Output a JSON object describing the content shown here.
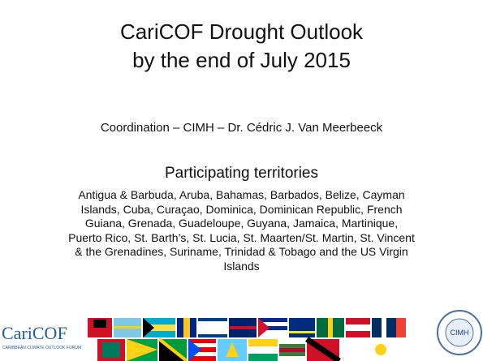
{
  "slide": {
    "title": [
      "CariCOF Drought Outlook",
      "by the end of July 2015"
    ],
    "coordination": "Coordination – CIMH – Dr. Cédric J. Van Meerbeeck",
    "territories_heading": "Participating territories",
    "territories_lines": [
      "Antigua & Barbuda, Aruba, Bahamas, Barbados, Belize, Cayman",
      "Islands, Cuba, Curaçao, Dominica, Dominican Republic, French",
      "Guiana, Grenada, Guadeloupe, Guyana, Jamaica, Martinique,",
      "Puerto Rico, St. Barth’s, St. Lucia, St. Maarten/St. Martin, St. Vincent",
      "& the Grenadines, Suriname, Trinidad & Tobago and the US Virgin",
      "Islands"
    ],
    "footer": {
      "logo": "CariCOF",
      "logo_subtitle": "CARIBBEAN CLIMATE OUTLOOK FORUM",
      "partner_logo": "CIMH"
    }
  }
}
